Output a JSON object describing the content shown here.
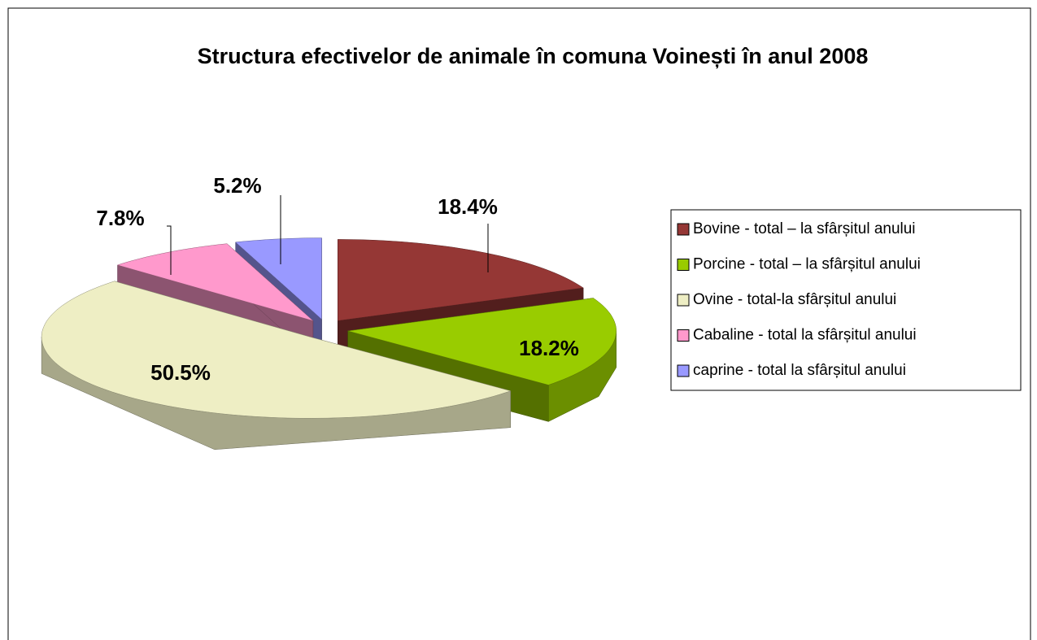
{
  "chart_data": {
    "type": "pie3d",
    "title": "Structura efectivelor de animale în comuna  Voinești în anul 2008",
    "categories": [
      "Bovine - total – la sfârșitul anului",
      "Porcine - total – la sfârșitul anului",
      "Ovine - total-la sfârșitul anului",
      "Cabaline - total la sfârșitul anului",
      "caprine - total la sfârșitul anului"
    ],
    "values": [
      18.4,
      18.2,
      50.5,
      7.8,
      5.2
    ],
    "value_labels": [
      "18.4%",
      "18.2%",
      "50.5%",
      "7.8%",
      "5.2%"
    ],
    "colors": [
      "#953735",
      "#99cc00",
      "#eeeec4",
      "#ff99cc",
      "#9999ff"
    ],
    "legend": "right"
  }
}
